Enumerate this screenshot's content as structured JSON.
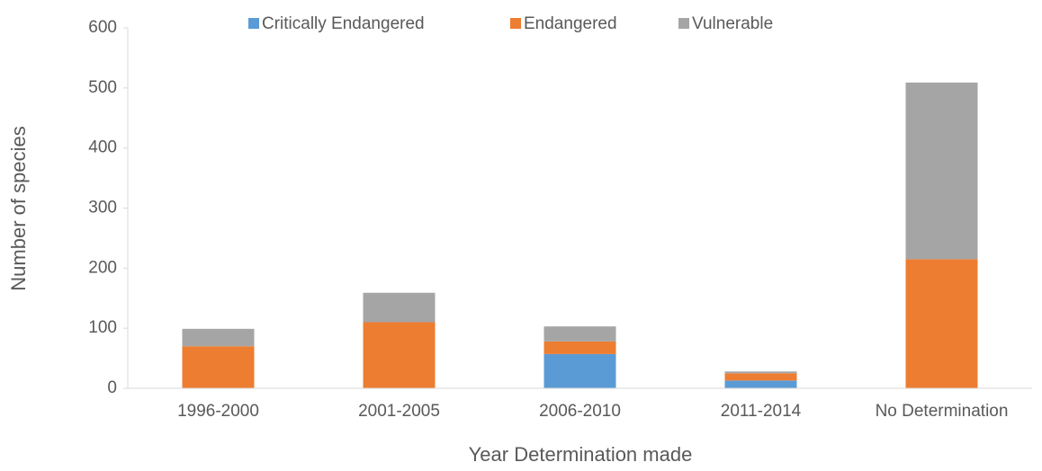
{
  "chart_data": {
    "type": "stacked_bar",
    "categories": [
      "1996-2000",
      "2001-2005",
      "2006-2010",
      "2011-2014",
      "No Determination"
    ],
    "series": [
      {
        "name": "Critically Endangered",
        "color": "#5b9bd5",
        "values": [
          0,
          0,
          57,
          13,
          0
        ]
      },
      {
        "name": "Endangered",
        "color": "#ed7d31",
        "values": [
          70,
          110,
          21,
          12,
          215
        ]
      },
      {
        "name": "Vulnerable",
        "color": "#a5a5a5",
        "values": [
          29,
          49,
          25,
          3,
          294
        ]
      }
    ],
    "ylim": [
      0,
      600
    ],
    "yticks": [
      0,
      100,
      200,
      300,
      400,
      500,
      600
    ],
    "ylabel": "Number of species",
    "xlabel": "Year Determination made",
    "legend": "top",
    "grid": false
  }
}
